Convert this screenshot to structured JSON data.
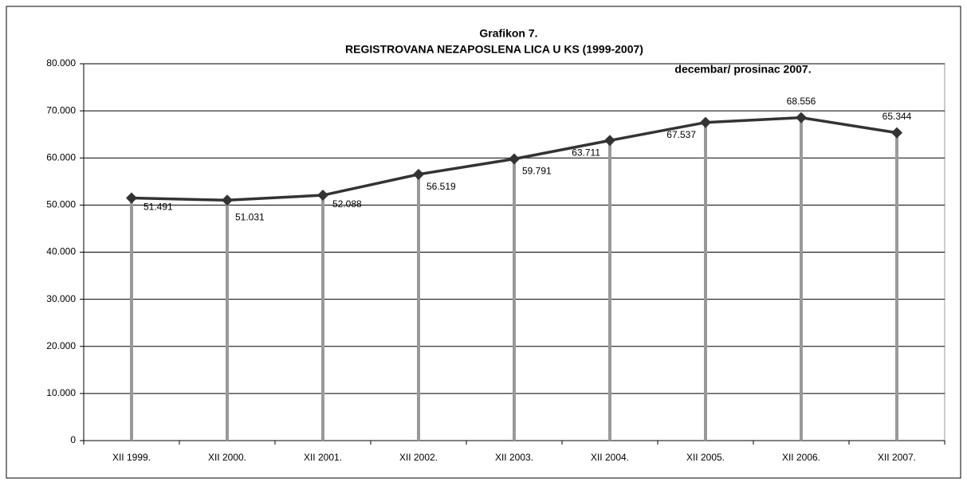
{
  "chart_data": {
    "type": "line",
    "title": "Grafikon 7.",
    "subtitle": "REGISTROVANA NEZAPOSLENA LICA U KS  (1999-2007)",
    "annotation": "decembar/ prosinac  2007.",
    "categories": [
      "XII 1999.",
      "XII 2000.",
      "XII 2001.",
      "XII 2002.",
      "XII 2003.",
      "XII  2004.",
      "XII 2005.",
      "XII 2006.",
      "XII 2007."
    ],
    "values": [
      51491,
      51031,
      52088,
      56519,
      59791,
      63711,
      67537,
      68556,
      65344
    ],
    "value_labels": [
      "51.491",
      "51.031",
      "52.088",
      "56.519",
      "59.791",
      "63.711",
      "67.537",
      "68.556",
      "65.344"
    ],
    "color": "#333333",
    "drop_line_color": "#999999",
    "ylim": [
      0,
      80000
    ],
    "yticks": [
      0,
      {
        "value": 10000,
        "label": "10.000"
      },
      {
        "value": 20000,
        "label": "20.000"
      },
      {
        "value": 30000,
        "label": "30.000"
      },
      {
        "value": 40000,
        "label": "40.000"
      },
      {
        "value": 50000,
        "label": "50.000"
      },
      {
        "value": 60000,
        "label": "60.000"
      },
      {
        "value": 70000,
        "label": "70.000"
      },
      {
        "value": 80000,
        "label": "80.000"
      }
    ],
    "grid": true
  }
}
